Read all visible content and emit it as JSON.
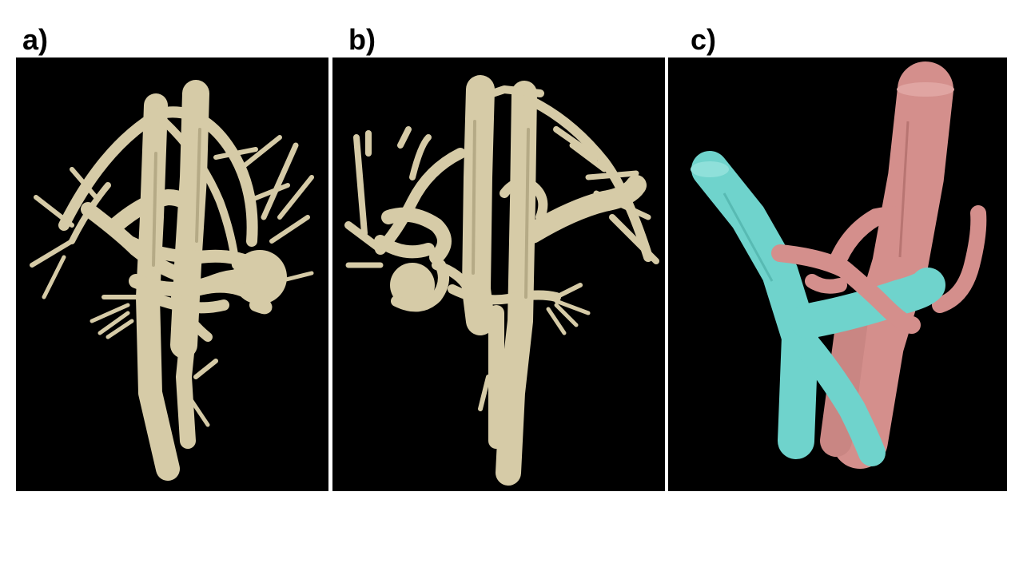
{
  "panels": [
    {
      "label": "a)"
    },
    {
      "label": "b)"
    },
    {
      "label": "c)"
    }
  ],
  "colors": {
    "background": "#000000",
    "vessel": "#d6cba7",
    "artery_pink": "#d48f8c",
    "vein_cyan": "#6fd3cc"
  }
}
